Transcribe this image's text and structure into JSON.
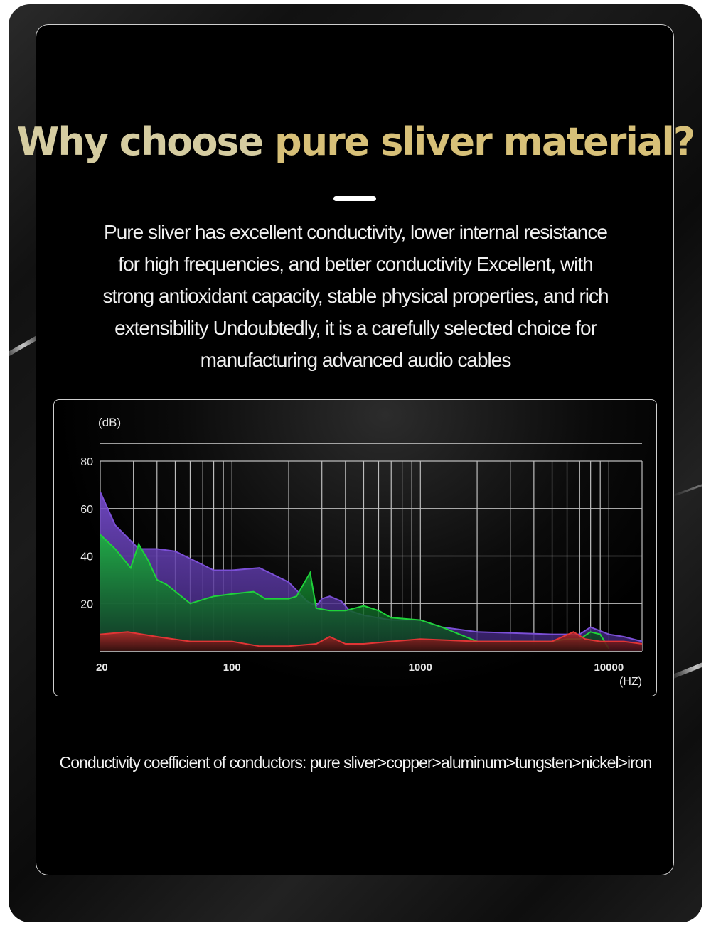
{
  "title": {
    "part1": "Why choose",
    "part2": "pure sliver material?"
  },
  "description": [
    "Pure sliver has excellent conductivity, lower internal resistance",
    "for high frequencies, and better conductivity Excellent, with",
    "strong antioxidant capacity, stable physical properties, and rich",
    "extensibility Undoubtedly, it is a carefully selected choice for",
    "manufacturing advanced audio cables"
  ],
  "footer": "Conductivity coefficient of conductors: pure sliver>copper>aluminum>tungsten>nickel>iron",
  "colors": {
    "purple": "#7b4fd6",
    "green": "#1fd23a",
    "red": "#e03535",
    "title_gold": "#d7c078"
  },
  "chart_data": {
    "type": "area",
    "ylabel": "(dB)",
    "xlabel": "(HZ)",
    "x_scale": "log",
    "xlim": [
      20,
      15000
    ],
    "ylim": [
      0,
      80
    ],
    "y_ticks": [
      80,
      60,
      40,
      20
    ],
    "x_ticks": [
      "20",
      "100",
      "1000",
      "10000"
    ],
    "grid": true,
    "series": [
      {
        "color": "#7b4fd6",
        "x": [
          20,
          24,
          32,
          40,
          50,
          80,
          100,
          140,
          200,
          250,
          280,
          300,
          330,
          380,
          420,
          500,
          700,
          1000,
          1300,
          2000,
          5000,
          6000,
          7000,
          8000,
          10000,
          12000,
          15000
        ],
        "y": [
          67,
          53,
          43,
          43,
          42,
          34,
          34,
          35,
          29,
          21,
          19,
          22,
          23,
          21,
          17,
          15,
          13,
          13,
          10,
          8,
          7,
          7,
          7,
          10,
          7,
          6,
          4
        ]
      },
      {
        "color": "#1fd23a",
        "x": [
          20,
          24,
          29,
          32,
          36,
          40,
          45,
          60,
          80,
          100,
          130,
          150,
          200,
          220,
          260,
          280,
          330,
          400,
          500,
          600,
          700,
          1000,
          1300,
          2000,
          5000,
          6000,
          7000,
          8000,
          9000,
          10000
        ],
        "y": [
          49,
          43,
          35,
          45,
          38,
          30,
          28,
          20,
          23,
          24,
          25,
          22,
          22,
          23,
          33,
          18,
          17,
          17,
          19,
          17,
          14,
          13,
          10,
          4,
          4,
          5,
          5,
          8,
          7,
          1
        ]
      },
      {
        "color": "#e03535",
        "x": [
          20,
          28,
          40,
          60,
          80,
          100,
          140,
          200,
          280,
          330,
          400,
          500,
          700,
          1000,
          2000,
          5000,
          6500,
          7500,
          9000,
          12000,
          15000
        ],
        "y": [
          7,
          8,
          6,
          4,
          4,
          4,
          2,
          2,
          3,
          6,
          3,
          3,
          4,
          5,
          4,
          4,
          8,
          5,
          4,
          4,
          3
        ]
      }
    ]
  }
}
